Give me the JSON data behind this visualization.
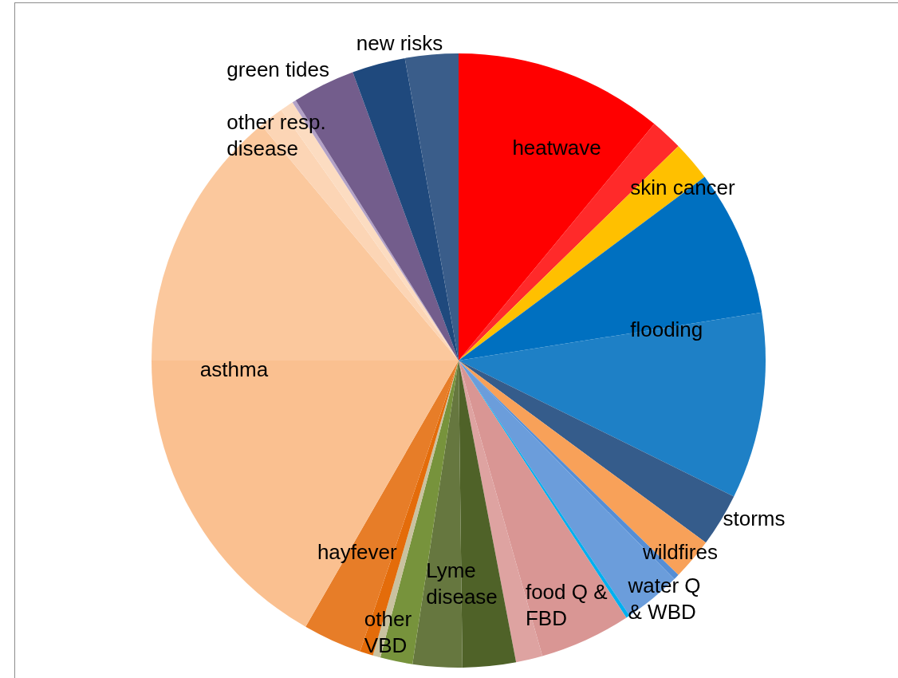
{
  "chart_data": {
    "type": "pie",
    "categories": [
      "heatwave",
      null,
      "skin cancer",
      null,
      "flooding",
      "storms",
      "wildfires",
      null,
      "water Q & WBD",
      null,
      "food Q & FBD",
      null,
      "Lyme disease",
      null,
      "other VBD",
      null,
      null,
      "hayfever",
      "asthma",
      null,
      "other resp. disease",
      null,
      null,
      "green tides",
      "new risks",
      null
    ],
    "values": [
      11.0,
      1.7,
      2.1,
      7.7,
      9.8,
      2.8,
      2.2,
      0.3,
      3.0,
      0.2,
      4.8,
      1.4,
      2.8,
      2.6,
      1.7,
      0.4,
      0.7,
      3.1,
      16.7,
      13.9,
      1.3,
      0.7,
      0.2,
      3.3,
      2.8,
      2.8
    ],
    "colors": [
      "#ff0000",
      "#ff2a2a",
      "#ffc000",
      "#0070c0",
      "#1e80c6",
      "#355c8b",
      "#f8a159",
      "#558ed5",
      "#6b9ddb",
      "#00b0f0",
      "#d99694",
      "#dea3a1",
      "#4f6228",
      "#66773f",
      "#77933c",
      "#c9c2a0",
      "#e46c0a",
      "#e77d28",
      "#fac090",
      "#fbc89d",
      "#fcd5b5",
      "#fcdcc1",
      "#b3a2c7",
      "#735d8c",
      "#1f497d",
      "#3a5d8a"
    ]
  }
}
